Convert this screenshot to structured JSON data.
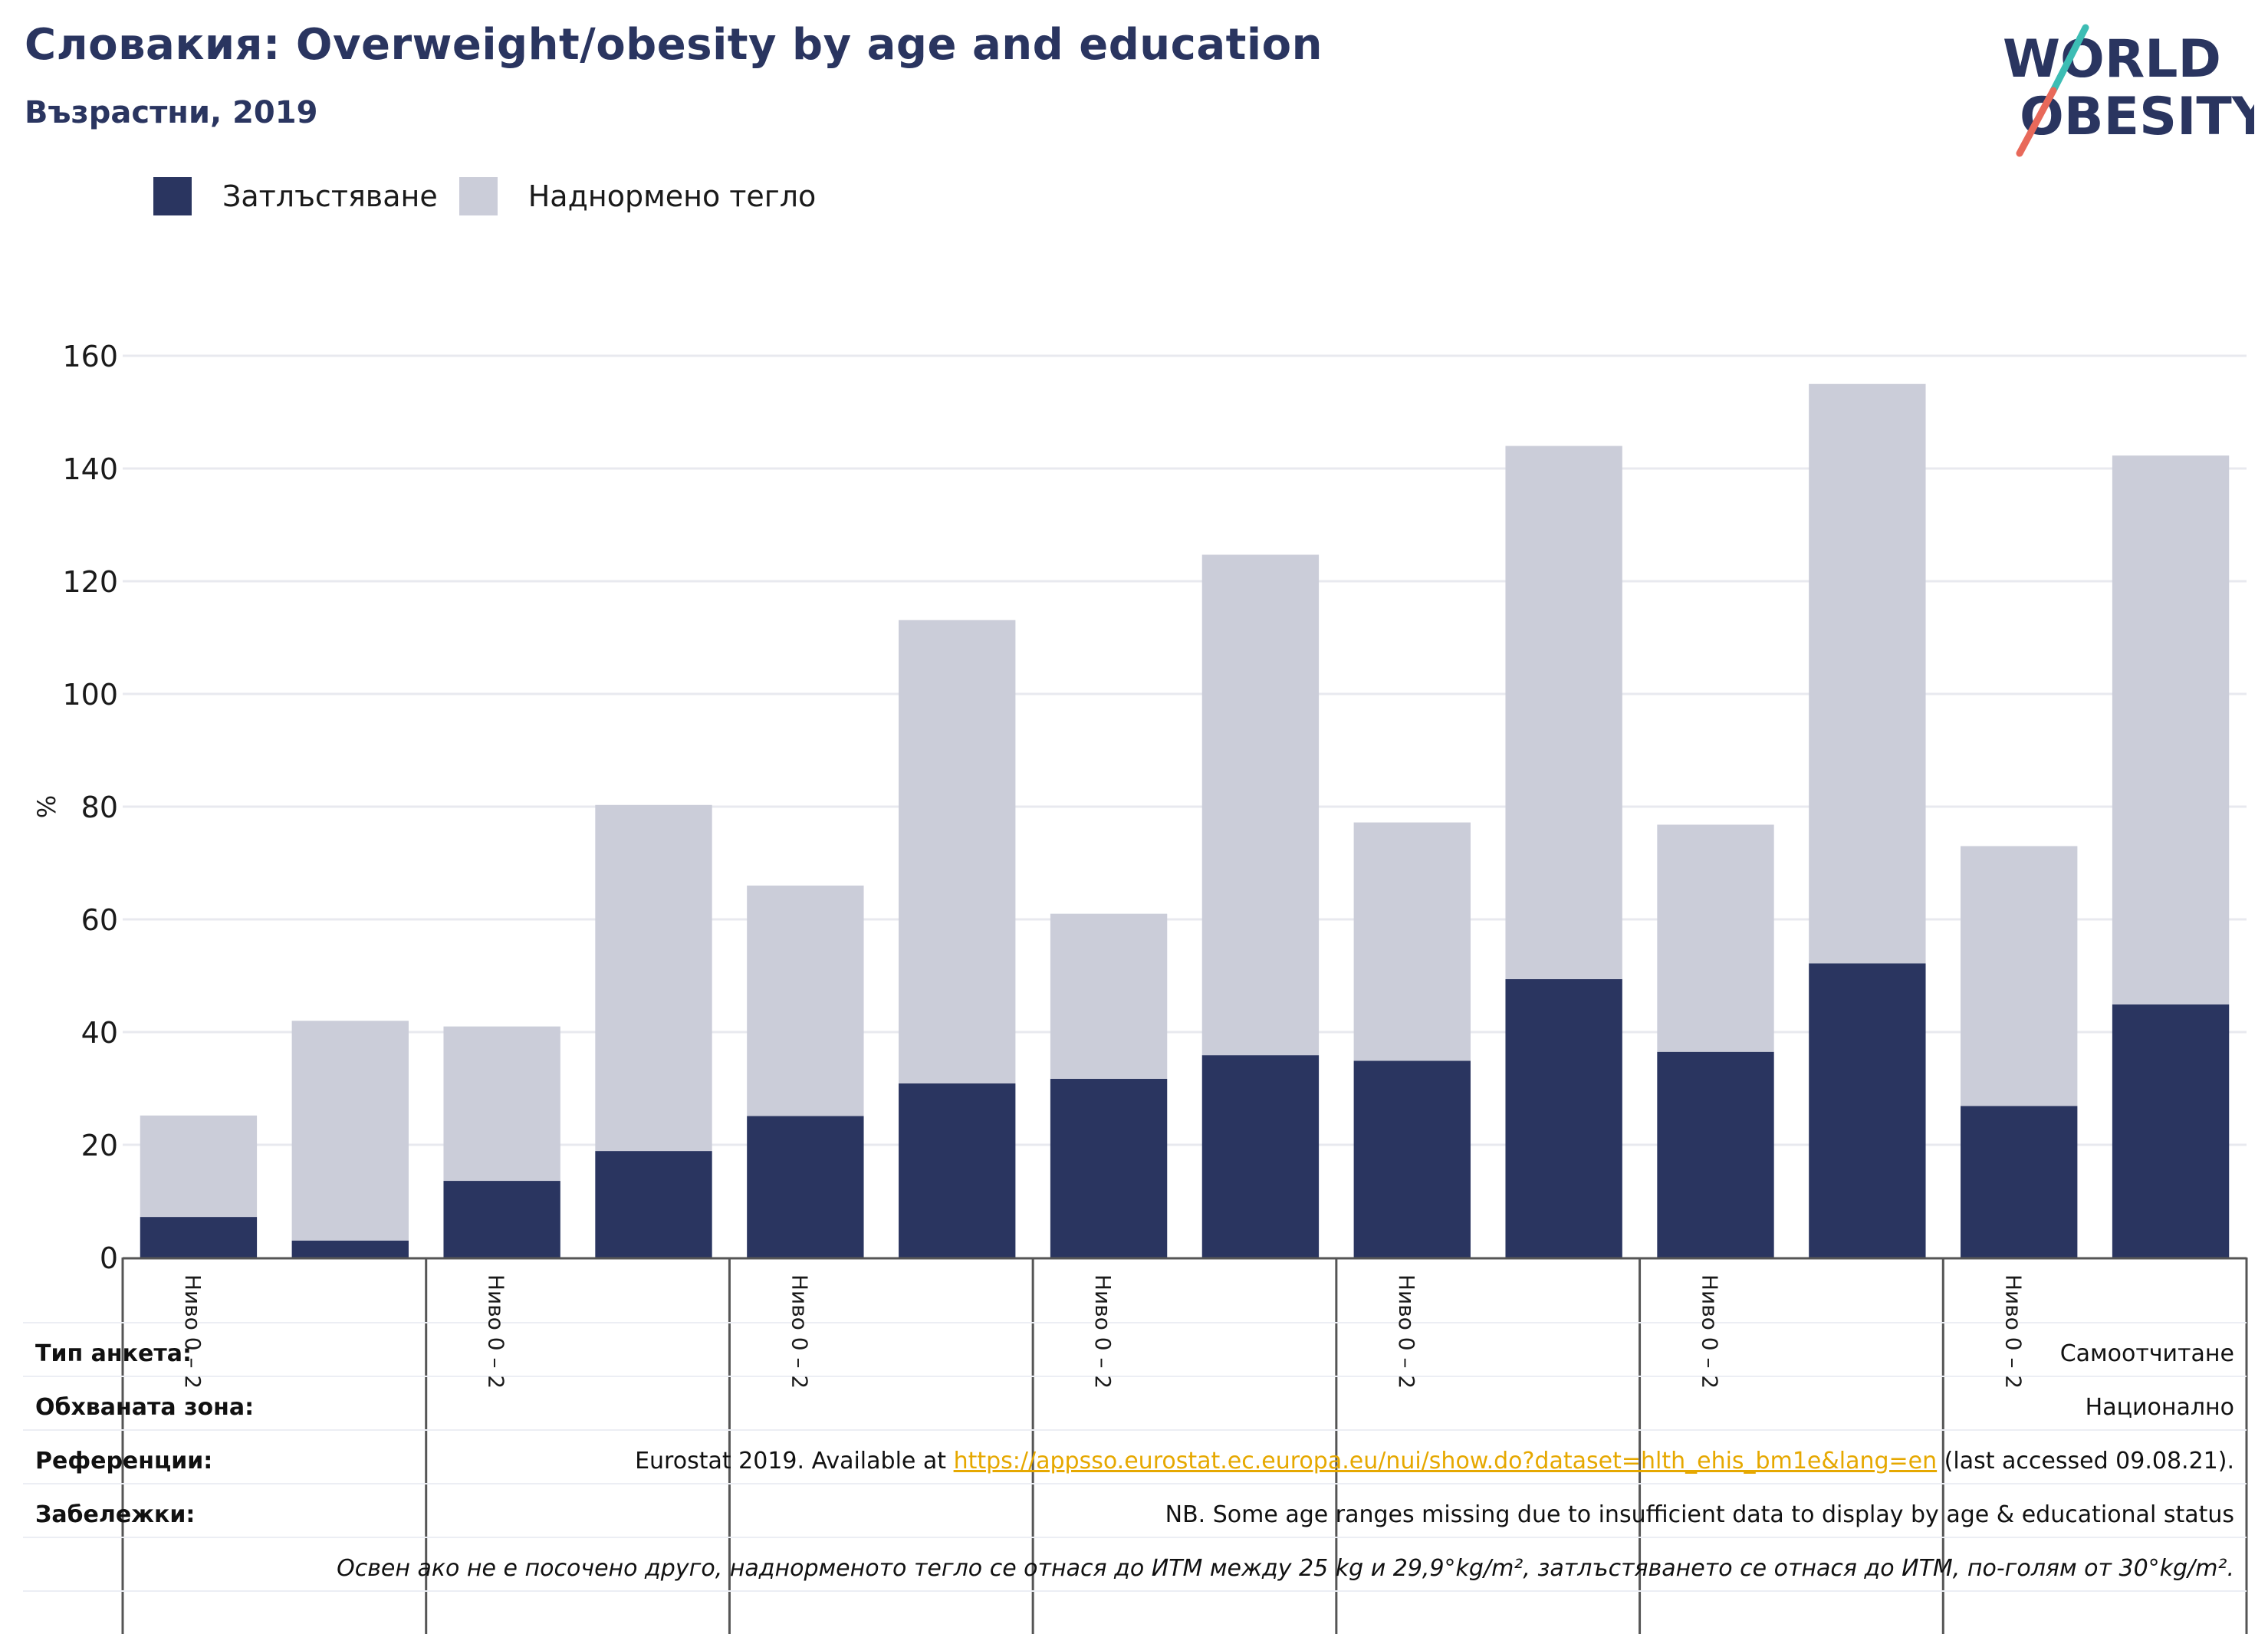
{
  "header": {
    "title": "Словакия: Overweight/obesity by age and education",
    "subtitle": "Възрастни, 2019"
  },
  "logo": {
    "line1": "WORLD",
    "line2": "OBESITY",
    "text_color": "#2a3560",
    "slash_top_color": "#3dbdb4",
    "slash_bottom_color": "#e8695a"
  },
  "legend": {
    "items": [
      {
        "label": "Затлъстяване",
        "color": "#2a3560"
      },
      {
        "label": "Наднормено тегло",
        "color": "#cbcdd9"
      }
    ]
  },
  "chart_data": {
    "type": "bar",
    "stacked": true,
    "ylabel": "%",
    "ylim": [
      0,
      160
    ],
    "yticks": [
      0,
      20,
      40,
      60,
      80,
      100,
      120,
      140,
      160
    ],
    "grid": true,
    "legend_position": "top-left",
    "group_label": "Ниво 0 – 2",
    "group_count": 7,
    "series": [
      {
        "name": "Затлъстяване",
        "color": "#2a3560",
        "values": [
          7.2,
          3.0,
          13.6,
          18.9,
          25.1,
          30.9,
          31.7,
          35.9,
          34.9,
          49.4,
          36.5,
          52.2,
          26.9,
          44.9
        ]
      },
      {
        "name": "Наднормено тегло",
        "color": "#cbcdd9",
        "values": [
          18.0,
          39.0,
          27.4,
          61.4,
          40.9,
          82.2,
          29.3,
          88.8,
          42.3,
          94.6,
          40.3,
          102.8,
          46.1,
          97.4
        ]
      }
    ]
  },
  "footer": {
    "survey_type_label": "Тип анкета:",
    "survey_type_value": "Самоотчитане",
    "coverage_label": "Обхваната зона:",
    "coverage_value": "Национално",
    "references_label": "Референции:",
    "references_prefix": "Eurostat 2019. Available at ",
    "references_link": "https://appsso.eurostat.ec.europa.eu/nui/show.do?dataset=hlth_ehis_bm1e&lang=en",
    "references_suffix": " (last accessed 09.08.21).",
    "notes_label": "Забележки:",
    "notes_value": "NB. Some age ranges missing due to insufficient data to display by age & educational status",
    "definition_note": "Освен ако не е посочено друго, наднорменото тегло се отнася до ИТМ между 25 kg и 29,9°kg/m², затлъстяването се отнася до ИТМ, по-голям от 30°kg/m²."
  }
}
